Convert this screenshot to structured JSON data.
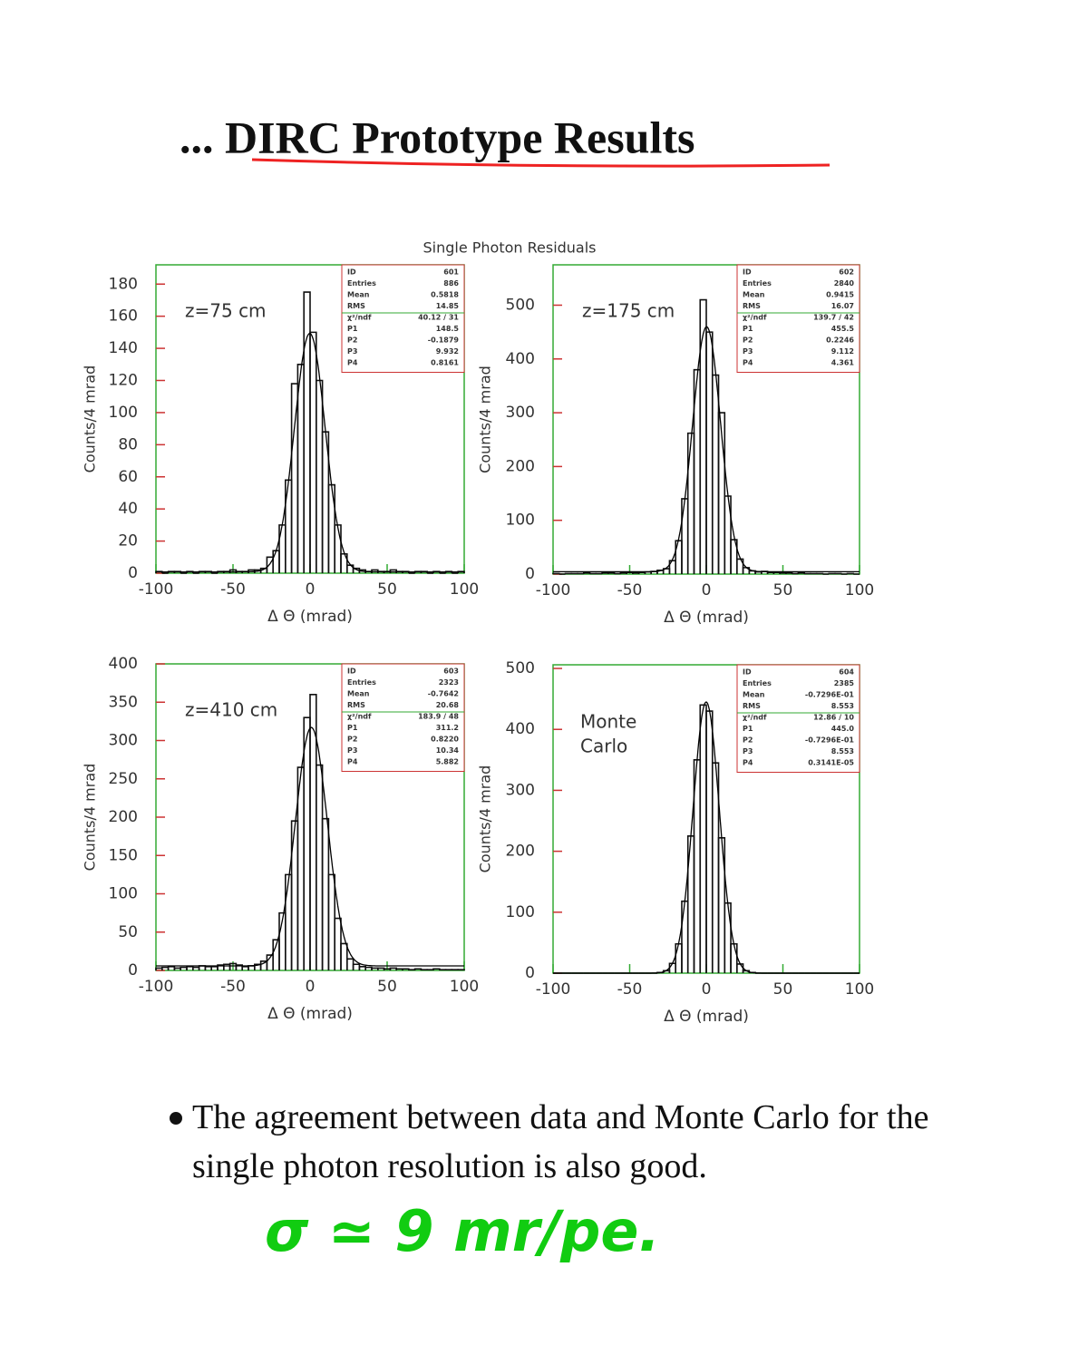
{
  "title": "... DIRC Prototype Results",
  "figure_title": "Single Photon Residuals",
  "bullet": "The agreement between data and Monte Carlo for the single photon resolution is also good.",
  "handwritten": "σ ≃ 9 mr/pe.",
  "chart_data": [
    {
      "type": "histogram",
      "annotation": [
        "z=75 cm"
      ],
      "xlabel": "Δ Θ (mrad)",
      "ylabel": "Counts/4 mrad",
      "bins": [
        -100,
        -96,
        -92,
        -88,
        -84,
        -80,
        -76,
        -72,
        -68,
        -64,
        -60,
        -56,
        -52,
        -48,
        -44,
        -40,
        -36,
        -32,
        -28,
        -24,
        -20,
        -16,
        -12,
        -8,
        -4,
        0,
        4,
        8,
        12,
        16,
        20,
        24,
        28,
        32,
        36,
        40,
        44,
        48,
        52,
        56,
        60,
        64,
        68,
        72,
        76,
        80,
        84,
        88,
        92,
        96,
        100
      ],
      "values": [
        1,
        0,
        1,
        1,
        0,
        1,
        0,
        1,
        1,
        0,
        1,
        1,
        2,
        1,
        1,
        2,
        2,
        3,
        10,
        14,
        30,
        58,
        118,
        130,
        175,
        150,
        120,
        88,
        55,
        30,
        12,
        5,
        3,
        2,
        1,
        2,
        1,
        1,
        2,
        1,
        1,
        0,
        1,
        1,
        0,
        1,
        0,
        1,
        0,
        1
      ],
      "xlim": [
        -100,
        100
      ],
      "xticks": [
        -100,
        -50,
        0,
        50,
        100
      ],
      "ylim": [
        0,
        192
      ],
      "yticks": [
        0,
        20,
        40,
        60,
        80,
        100,
        120,
        140,
        160,
        180
      ],
      "stats": [
        {
          "name": "ID",
          "value": "601"
        },
        {
          "name": "Entries",
          "value": "886"
        },
        {
          "name": "Mean",
          "value": "0.5818"
        },
        {
          "name": "RMS",
          "value": "14.85"
        },
        {
          "name": "χ²/ndf",
          "value": "40.12 / 31"
        }
      ],
      "fit": [
        {
          "name": "P1",
          "value": 148.5
        },
        {
          "name": "P2",
          "value": -0.1879
        },
        {
          "name": "P3",
          "value": 9.932
        },
        {
          "name": "P4",
          "value": 0.8161
        }
      ]
    },
    {
      "type": "histogram",
      "annotation": [
        "z=175 cm"
      ],
      "xlabel": "Δ Θ (mrad)",
      "ylabel": "Counts/4 mrad",
      "bins": [
        -100,
        -96,
        -92,
        -88,
        -84,
        -80,
        -76,
        -72,
        -68,
        -64,
        -60,
        -56,
        -52,
        -48,
        -44,
        -40,
        -36,
        -32,
        -28,
        -24,
        -20,
        -16,
        -12,
        -8,
        -4,
        0,
        4,
        8,
        12,
        16,
        20,
        24,
        28,
        32,
        36,
        40,
        44,
        48,
        52,
        56,
        60,
        64,
        68,
        72,
        76,
        80,
        84,
        88,
        92,
        96,
        100
      ],
      "values": [
        1,
        0,
        1,
        1,
        1,
        2,
        1,
        1,
        2,
        2,
        1,
        2,
        3,
        2,
        3,
        4,
        5,
        7,
        10,
        25,
        62,
        140,
        262,
        380,
        510,
        450,
        370,
        300,
        145,
        64,
        28,
        12,
        6,
        4,
        5,
        3,
        3,
        2,
        2,
        1,
        2,
        1,
        1,
        1,
        0,
        1,
        1,
        0,
        1,
        0
      ],
      "xlim": [
        -100,
        100
      ],
      "xticks": [
        -100,
        -50,
        0,
        50,
        100
      ],
      "ylim": [
        0,
        575
      ],
      "yticks": [
        0,
        100,
        200,
        300,
        400,
        500
      ],
      "stats": [
        {
          "name": "ID",
          "value": "602"
        },
        {
          "name": "Entries",
          "value": "2840"
        },
        {
          "name": "Mean",
          "value": "0.9415"
        },
        {
          "name": "RMS",
          "value": "16.07"
        },
        {
          "name": "χ²/ndf",
          "value": "139.7 / 42"
        }
      ],
      "fit": [
        {
          "name": "P1",
          "value": 455.5
        },
        {
          "name": "P2",
          "value": 0.2246
        },
        {
          "name": "P3",
          "value": 9.112
        },
        {
          "name": "P4",
          "value": 4.361
        }
      ]
    },
    {
      "type": "histogram",
      "annotation": [
        "z=410 cm"
      ],
      "xlabel": "Δ Θ (mrad)",
      "ylabel": "Counts/4 mrad",
      "bins": [
        -100,
        -96,
        -92,
        -88,
        -84,
        -80,
        -76,
        -72,
        -68,
        -64,
        -60,
        -56,
        -52,
        -48,
        -44,
        -40,
        -36,
        -32,
        -28,
        -24,
        -20,
        -16,
        -12,
        -8,
        -4,
        0,
        4,
        8,
        12,
        16,
        20,
        24,
        28,
        32,
        36,
        40,
        44,
        48,
        52,
        56,
        60,
        64,
        68,
        72,
        76,
        80,
        84,
        88,
        92,
        96,
        100
      ],
      "values": [
        3,
        4,
        5,
        3,
        4,
        5,
        4,
        6,
        5,
        5,
        7,
        8,
        9,
        7,
        5,
        6,
        8,
        12,
        20,
        40,
        75,
        125,
        195,
        265,
        330,
        360,
        268,
        198,
        125,
        68,
        35,
        15,
        8,
        5,
        4,
        3,
        3,
        2,
        3,
        2,
        2,
        1,
        2,
        1,
        1,
        2,
        1,
        1,
        1,
        1
      ],
      "xlim": [
        -100,
        100
      ],
      "xticks": [
        -100,
        -50,
        0,
        50,
        100
      ],
      "ylim": [
        0,
        400
      ],
      "yticks": [
        0,
        50,
        100,
        150,
        200,
        250,
        300,
        350,
        400
      ],
      "stats": [
        {
          "name": "ID",
          "value": "603"
        },
        {
          "name": "Entries",
          "value": "2323"
        },
        {
          "name": "Mean",
          "value": "-0.7642"
        },
        {
          "name": "RMS",
          "value": "20.68"
        },
        {
          "name": "χ²/ndf",
          "value": "183.9 / 48"
        }
      ],
      "fit": [
        {
          "name": "P1",
          "value": 311.2
        },
        {
          "name": "P2",
          "value": {
            "value": 0.822,
            "label": "0.8220"
          }
        },
        {
          "name": "P3",
          "value": 10.34
        },
        {
          "name": "P4",
          "value": 5.882
        }
      ]
    },
    {
      "type": "histogram",
      "annotation": [
        "Monte",
        "Carlo"
      ],
      "xlabel": "Δ Θ (mrad)",
      "ylabel": "Counts/4 mrad",
      "bins": [
        -100,
        -96,
        -92,
        -88,
        -84,
        -80,
        -76,
        -72,
        -68,
        -64,
        -60,
        -56,
        -52,
        -48,
        -44,
        -40,
        -36,
        -32,
        -28,
        -24,
        -20,
        -16,
        -12,
        -8,
        -4,
        0,
        4,
        8,
        12,
        16,
        20,
        24,
        28,
        32,
        36,
        40,
        44,
        48,
        52,
        56,
        60,
        64,
        68,
        72,
        76,
        80,
        84,
        88,
        92,
        96,
        100
      ],
      "values": [
        0,
        0,
        0,
        0,
        0,
        0,
        0,
        0,
        0,
        0,
        0,
        0,
        0,
        0,
        0,
        0,
        0,
        1,
        4,
        16,
        48,
        118,
        225,
        350,
        440,
        430,
        345,
        222,
        115,
        48,
        15,
        4,
        1,
        0,
        0,
        0,
        0,
        0,
        0,
        0,
        0,
        0,
        0,
        0,
        0,
        0,
        0,
        0,
        0,
        0
      ],
      "xlim": [
        -100,
        100
      ],
      "xticks": [
        -100,
        -50,
        0,
        50,
        100
      ],
      "ylim": [
        0,
        506
      ],
      "yticks": [
        0,
        100,
        200,
        300,
        400,
        500
      ],
      "stats": [
        {
          "name": "ID",
          "value": "604"
        },
        {
          "name": "Entries",
          "value": "2385"
        },
        {
          "name": "Mean",
          "value": "-0.7296E-01"
        },
        {
          "name": "RMS",
          "value": "8.553"
        },
        {
          "name": "χ²/ndf",
          "value": "12.86 / 10"
        }
      ],
      "fit": [
        {
          "name": "P1",
          "value": {
            "value": 445,
            "label": "445.0"
          }
        },
        {
          "name": "P2",
          "value": {
            "value": -0.07296,
            "label": "-0.7296E-01"
          }
        },
        {
          "name": "P3",
          "value": 8.553
        },
        {
          "name": "P4",
          "value": {
            "value": 3.141e-06,
            "label": "0.3141E-05"
          }
        }
      ]
    }
  ]
}
